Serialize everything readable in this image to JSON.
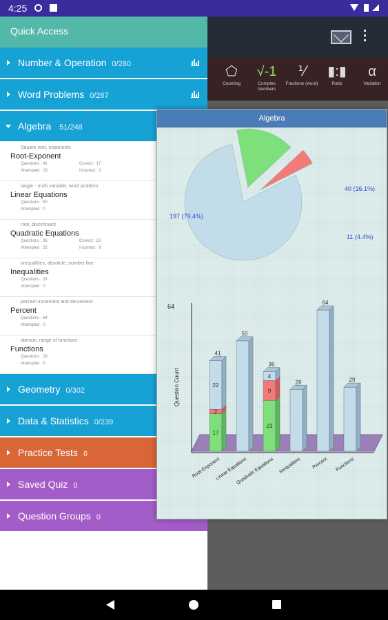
{
  "status": {
    "time": "4:25"
  },
  "quick_access": "Quick Access",
  "categories_top": [
    {
      "label": "Number & Operation",
      "count": "0/280",
      "color": "#17a2d6",
      "stats_icon": true
    },
    {
      "label": "Word Problems",
      "count": "0/267",
      "color": "#17a2d6",
      "stats_icon": true
    }
  ],
  "algebra": {
    "label": "Algebra",
    "count": "51/248",
    "color": "#17a2d6"
  },
  "subtopics": [
    {
      "desc": "Square root, exponents",
      "name": "Root-Exponent",
      "questions": "Questions : 41",
      "attempted": "Attempted : 19",
      "correct": "Correct : 17",
      "incorrect": "Incorrect : 2"
    },
    {
      "desc": "single - multi variable, word problem",
      "name": "Linear Equations",
      "questions": "Questions : 50",
      "attempted": "Attempted : 0",
      "correct": "",
      "incorrect": ""
    },
    {
      "desc": "root, disciminant",
      "name": "Quadratic Equations",
      "questions": "Questions : 36",
      "attempted": "Attempted : 32",
      "correct": "Correct : 23",
      "incorrect": "Incorrect : 9"
    },
    {
      "desc": "inequalities, absolute, number line",
      "name": "Inequalities",
      "questions": "Questions : 28",
      "attempted": "Attempted : 0",
      "correct": "",
      "incorrect": ""
    },
    {
      "desc": "percent increment and decrement",
      "name": "Percent",
      "questions": "Questions : 64",
      "attempted": "Attempted : 0",
      "correct": "",
      "incorrect": ""
    },
    {
      "desc": "domain, range of functions",
      "name": "Functions",
      "questions": "Questions : 29",
      "attempted": "Attempted : 0",
      "correct": "",
      "incorrect": ""
    }
  ],
  "categories_bottom": [
    {
      "label": "Geometry",
      "count": "0/302",
      "color": "#17a2d6"
    },
    {
      "label": "Data & Statistics",
      "count": "0/239",
      "color": "#17a2d6"
    },
    {
      "label": "Practice Tests",
      "count": "6",
      "color": "#d86637"
    },
    {
      "label": "Saved Quiz",
      "count": "0",
      "color": "#a35dc8"
    },
    {
      "label": "Question Groups",
      "count": "0",
      "color": "#a35dc8"
    }
  ],
  "topics": [
    {
      "label": "Counting",
      "icon": "pentagon-icon",
      "glyph": "⬠"
    },
    {
      "label": "Complex Numbers",
      "icon": "sqrt-icon",
      "glyph": "√-1"
    },
    {
      "label": "Fractions (word)",
      "icon": "fraction-icon",
      "glyph": "⅟"
    },
    {
      "label": "Ratio",
      "icon": "ratio-icon",
      "glyph": "▮:▮"
    },
    {
      "label": "Variation",
      "icon": "alpha-icon",
      "glyph": "α"
    }
  ],
  "dialog": {
    "title": "Algebra"
  },
  "chart_data": [
    {
      "type": "pie",
      "slices": [
        {
          "label": "197 (79.4%)",
          "value": 197,
          "color": "#c3dcea"
        },
        {
          "label": "40 (16.1%)",
          "value": 40,
          "color": "#7de07a"
        },
        {
          "label": "11 (4.4%)",
          "value": 11,
          "color": "#f47a7a"
        }
      ]
    },
    {
      "type": "bar",
      "ylabel": "Question Count",
      "ymax_label": "64",
      "ylim": [
        0,
        64
      ],
      "categories": [
        "Root-Exponent",
        "Linear Equations",
        "Quadratic Equations",
        "Inequalities",
        "Percent",
        "Functions"
      ],
      "totals": [
        41,
        50,
        36,
        28,
        64,
        29
      ],
      "series": [
        {
          "name": "",
          "color": "#7de07a",
          "values": [
            17,
            0,
            23,
            0,
            0,
            0
          ]
        },
        {
          "name": "",
          "color": "#f47a7a",
          "values": [
            2,
            0,
            9,
            0,
            0,
            0
          ]
        },
        {
          "name": "",
          "color": "#c3dcea",
          "values": [
            22,
            50,
            4,
            28,
            64,
            29
          ]
        }
      ],
      "segment_labels": [
        [
          "17",
          "2",
          "22"
        ],
        [],
        [
          "23",
          "9",
          "4"
        ],
        [],
        [],
        []
      ],
      "total_labels": [
        "41",
        "50",
        "36",
        "28",
        "64",
        "29"
      ]
    }
  ],
  "colors": {
    "status": "#3b2c9e",
    "teal": "#53b8a7",
    "blue": "#17a2d6",
    "orange": "#d86637",
    "purple": "#a35dc8"
  }
}
